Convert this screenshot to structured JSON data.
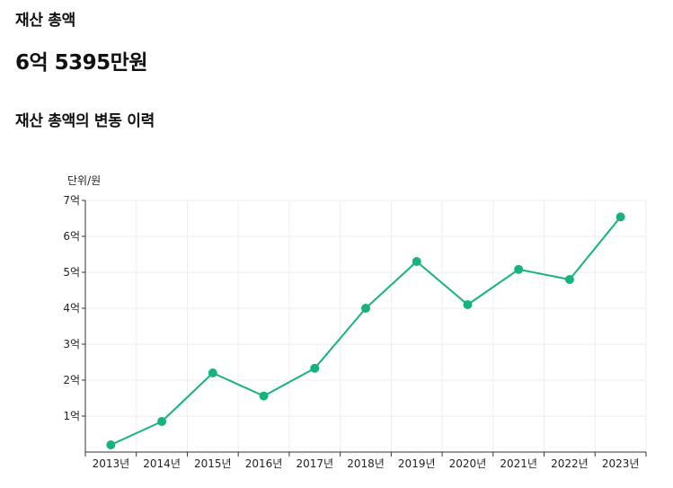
{
  "header": {
    "label": "재산 총액",
    "total": "6억 5395만원"
  },
  "section_title": "재산 총액의 변동 이력",
  "colors": {
    "accent": "#16b37b",
    "grid": "#eeeeee",
    "axis": "#333333",
    "text": "#111111"
  },
  "chart_data": {
    "type": "line",
    "title": "재산 총액의 변동 이력",
    "unit_label": "단위/원",
    "categories": [
      "2013년",
      "2014년",
      "2015년",
      "2016년",
      "2017년",
      "2018년",
      "2019년",
      "2020년",
      "2021년",
      "2022년",
      "2023년"
    ],
    "series": [
      {
        "values": [
          0.2,
          0.85,
          2.2,
          1.56,
          2.33,
          4.0,
          5.3,
          4.1,
          5.08,
          4.8,
          6.54
        ]
      }
    ],
    "y_ticks": [
      {
        "value": 1,
        "label": "1억"
      },
      {
        "value": 2,
        "label": "2억"
      },
      {
        "value": 3,
        "label": "3억"
      },
      {
        "value": 4,
        "label": "4억"
      },
      {
        "value": 5,
        "label": "5억"
      },
      {
        "value": 6,
        "label": "6억"
      },
      {
        "value": 7,
        "label": "7억"
      }
    ],
    "ylim": [
      0,
      7
    ],
    "grid": true,
    "legend": "none"
  }
}
